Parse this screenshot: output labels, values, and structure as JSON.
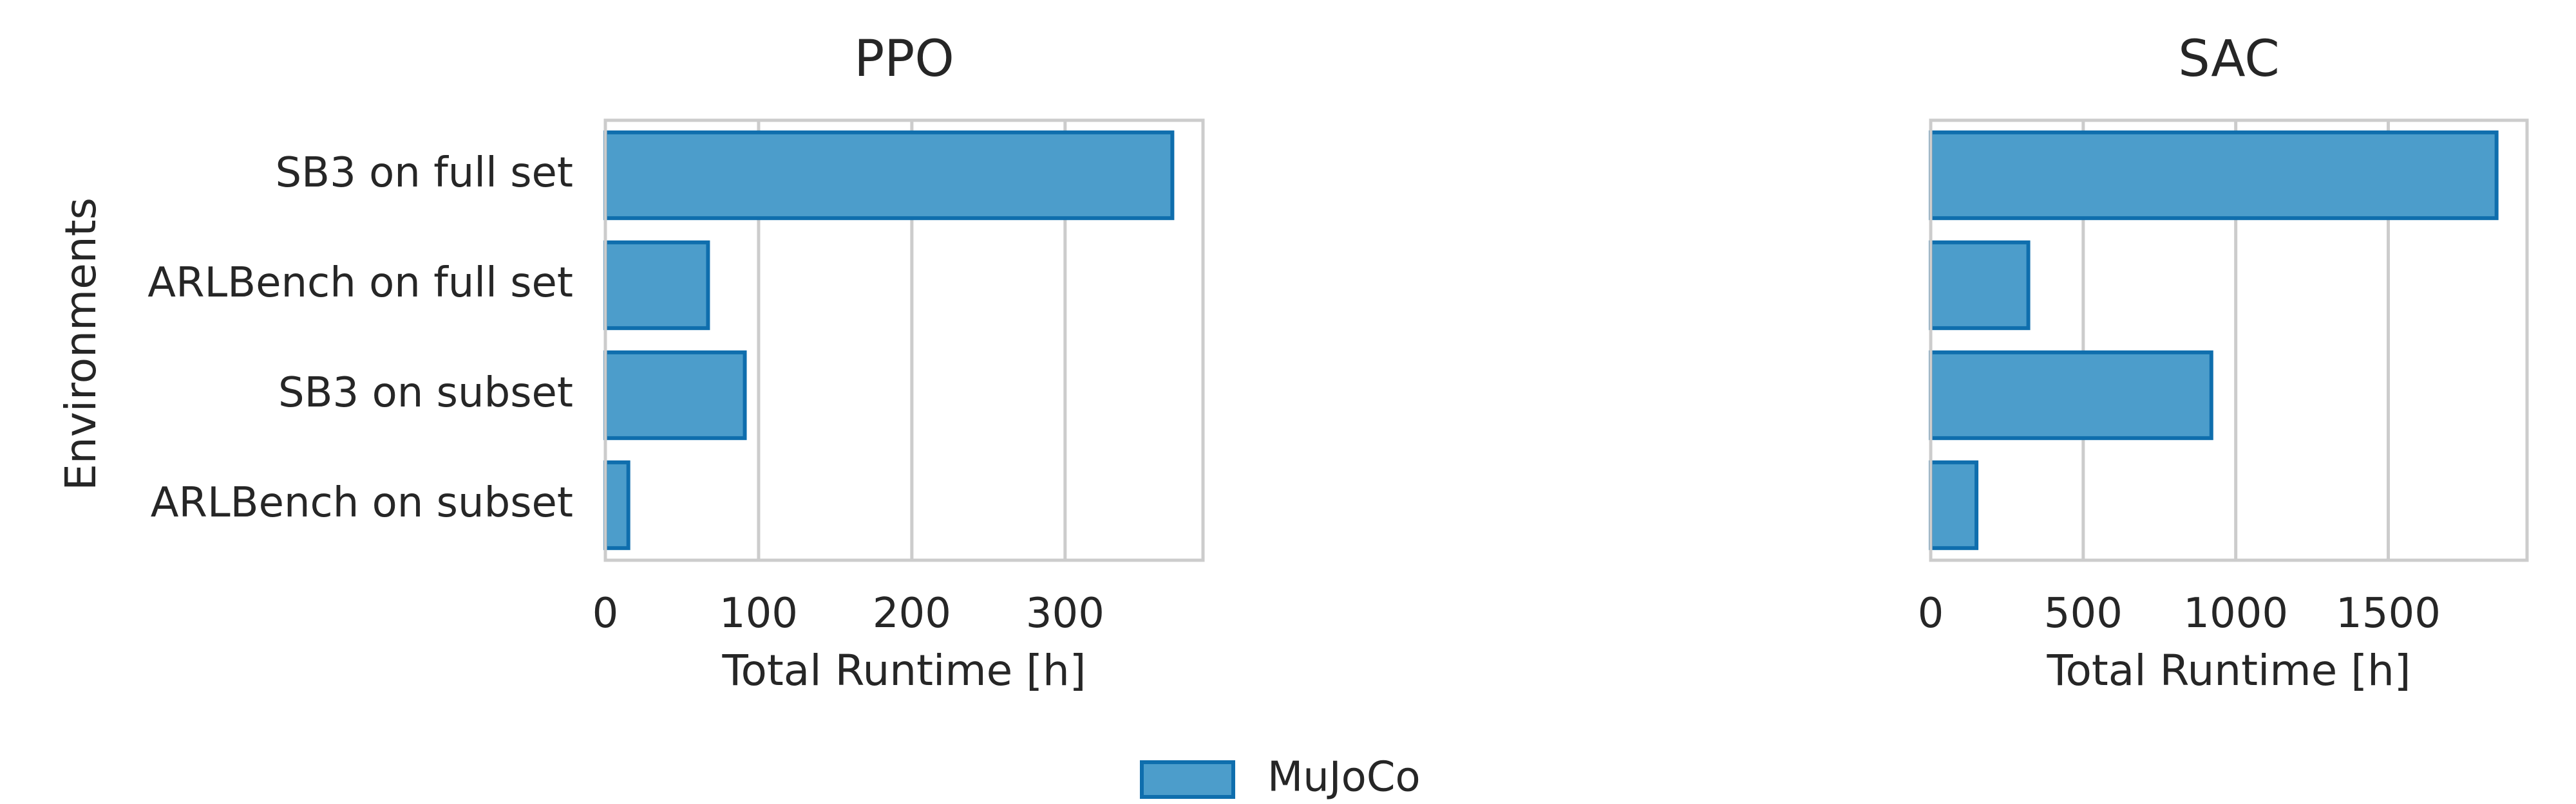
{
  "chart_data": [
    {
      "type": "bar",
      "orientation": "horizontal",
      "title": "PPO",
      "xlabel": "Total Runtime [h]",
      "ylabel": "Environments",
      "categories": [
        "SB3 on full set",
        "ARLBench on full set",
        "SB3 on subset",
        "ARLBench on subset"
      ],
      "series": [
        {
          "name": "MuJoCo",
          "values": [
            370,
            67,
            91,
            15
          ]
        }
      ],
      "xlim": [
        0,
        390
      ],
      "xticks": [
        0,
        100,
        200,
        300
      ],
      "grid": "vertical"
    },
    {
      "type": "bar",
      "orientation": "horizontal",
      "title": "SAC",
      "xlabel": "Total Runtime [h]",
      "ylabel": "",
      "categories": [
        "SB3 on full set",
        "ARLBench on full set",
        "SB3 on subset",
        "ARLBench on subset"
      ],
      "series": [
        {
          "name": "MuJoCo",
          "values": [
            1855,
            320,
            920,
            150
          ]
        }
      ],
      "xlim": [
        0,
        1955
      ],
      "xticks": [
        0,
        500,
        1000,
        1500
      ],
      "grid": "vertical"
    }
  ],
  "legend": {
    "placement": "bottom-center",
    "items": [
      "MuJoCo"
    ]
  },
  "colors": {
    "bar_fill": "#4c9dcb",
    "bar_edge": "#0f6ead"
  }
}
